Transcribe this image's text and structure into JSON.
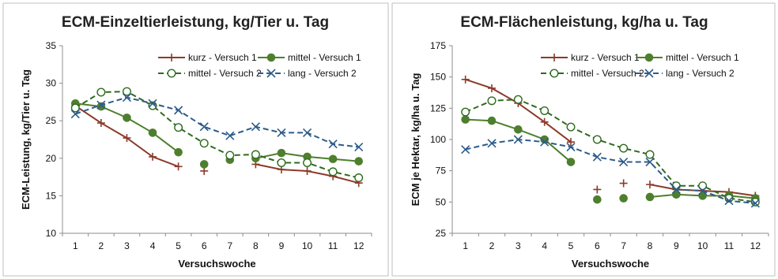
{
  "chart_data": [
    {
      "type": "line",
      "title": "ECM-Einzeltierleistung, kg/Tier u. Tag",
      "xlabel": "Versuchswoche",
      "ylabel": "ECM-Leistung, kg/Tier u. Tag",
      "ylim": [
        10,
        35
      ],
      "yticks": [
        10,
        15,
        20,
        25,
        30,
        35
      ],
      "categories": [
        "1",
        "2",
        "3",
        "4",
        "5",
        "6",
        "7",
        "8",
        "9",
        "10",
        "11",
        "12"
      ],
      "grid": false,
      "legend_position": "top-right",
      "series": [
        {
          "name": "kurz - Versuch 1",
          "color": "#8B3A2A",
          "marker": "plus",
          "dash": "solid",
          "values": [
            27.0,
            24.7,
            22.7,
            20.2,
            18.9,
            18.3,
            null,
            19.2,
            18.5,
            18.3,
            17.6,
            16.7
          ],
          "connected": [
            [
              1,
              5
            ],
            [
              8,
              12
            ]
          ]
        },
        {
          "name": "mittel - Versuch 1",
          "color": "#4E7F2E",
          "marker": "filled-circle",
          "dash": "solid",
          "values": [
            27.3,
            26.9,
            25.4,
            23.4,
            20.8,
            19.2,
            19.8,
            20.0,
            20.7,
            20.2,
            19.9,
            19.6
          ],
          "connected": [
            [
              1,
              5
            ],
            [
              8,
              12
            ]
          ]
        },
        {
          "name": "mittel - Versuch 2",
          "color": "#2E6B1E",
          "marker": "open-circle",
          "dash": "dashed",
          "values": [
            26.7,
            28.8,
            28.9,
            27.0,
            24.1,
            22.0,
            20.4,
            20.5,
            19.4,
            19.4,
            18.2,
            17.4
          ],
          "connected": [
            [
              1,
              12
            ]
          ]
        },
        {
          "name": "lang - Versuch 2",
          "color": "#2E5C8A",
          "marker": "x",
          "dash": "dashed",
          "values": [
            25.9,
            27.1,
            28.1,
            27.3,
            26.4,
            24.2,
            23.0,
            24.2,
            23.4,
            23.4,
            21.9,
            21.5
          ],
          "connected": [
            [
              1,
              12
            ]
          ]
        }
      ]
    },
    {
      "type": "line",
      "title": "ECM-Flächenleistung, kg/ha u. Tag",
      "xlabel": "Versuchswoche",
      "ylabel": "ECM je Hektar, kg/ha u. Tag",
      "ylim": [
        25,
        175
      ],
      "yticks": [
        25,
        50,
        75,
        100,
        125,
        150,
        175
      ],
      "categories": [
        "1",
        "2",
        "3",
        "4",
        "5",
        "6",
        "7",
        "8",
        "9",
        "10",
        "11",
        "12"
      ],
      "grid": false,
      "legend_position": "top-right",
      "series": [
        {
          "name": "kurz - Versuch 1",
          "color": "#8B3A2A",
          "marker": "plus",
          "dash": "solid",
          "values": [
            148,
            141,
            129,
            114,
            98,
            60,
            65,
            64,
            60,
            59,
            58,
            55
          ],
          "connected": [
            [
              1,
              5
            ],
            [
              8,
              12
            ]
          ]
        },
        {
          "name": "mittel - Versuch 1",
          "color": "#4E7F2E",
          "marker": "filled-circle",
          "dash": "solid",
          "values": [
            116,
            115,
            108,
            100,
            82,
            52,
            53,
            54,
            56,
            55,
            55,
            53
          ],
          "connected": [
            [
              1,
              5
            ],
            [
              8,
              12
            ]
          ]
        },
        {
          "name": "mittel - Versuch 2",
          "color": "#2E6B1E",
          "marker": "open-circle",
          "dash": "dashed",
          "values": [
            122,
            131,
            132,
            123,
            110,
            100,
            93,
            88,
            63,
            63,
            53,
            50
          ],
          "connected": [
            [
              1,
              12
            ]
          ]
        },
        {
          "name": "lang - Versuch 2",
          "color": "#2E5C8A",
          "marker": "x",
          "dash": "dashed",
          "values": [
            92,
            97,
            100,
            98,
            94,
            86,
            82,
            82,
            60,
            59,
            51,
            49
          ],
          "connected": [
            [
              1,
              12
            ]
          ]
        }
      ]
    }
  ]
}
